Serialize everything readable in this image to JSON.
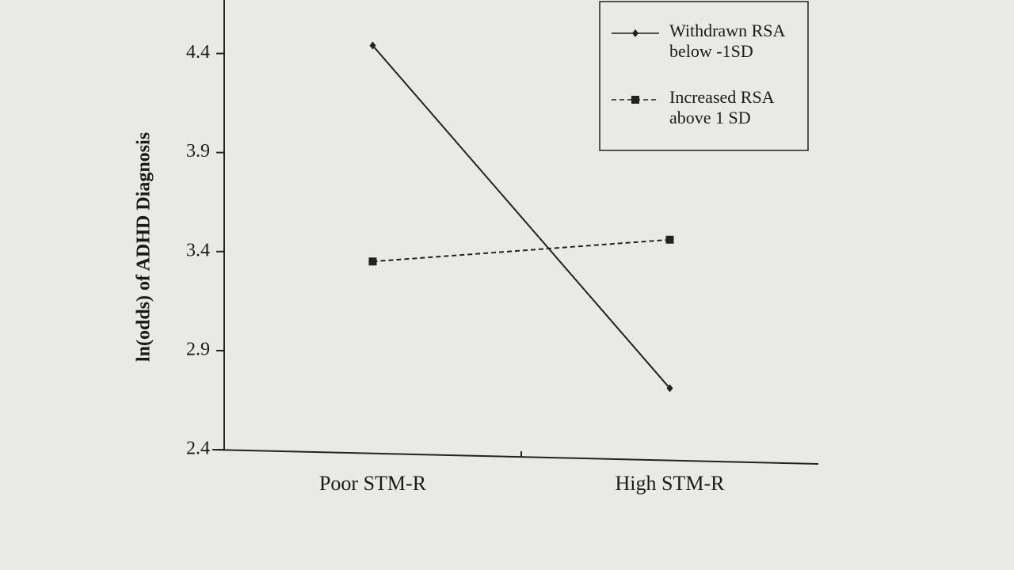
{
  "chart_data": {
    "type": "line",
    "y_label": "ln(odds) of ADHD Diagnosis",
    "categories": [
      "Poor STM-R",
      "High STM-R"
    ],
    "series": [
      {
        "name": "Withdrawn RSA below -1SD",
        "color": "#222222",
        "line_style": "solid",
        "marker": "diamond",
        "values": [
          4.44,
          2.71
        ]
      },
      {
        "name": "Increased RSA above 1 SD",
        "color": "#222222",
        "line_style": "dashed",
        "marker": "square",
        "values": [
          3.35,
          3.46
        ]
      }
    ],
    "ylim": [
      2.4,
      4.67
    ],
    "yticks": [
      2.4,
      2.9,
      3.4,
      3.9,
      4.4
    ],
    "legend": "upper-right"
  }
}
